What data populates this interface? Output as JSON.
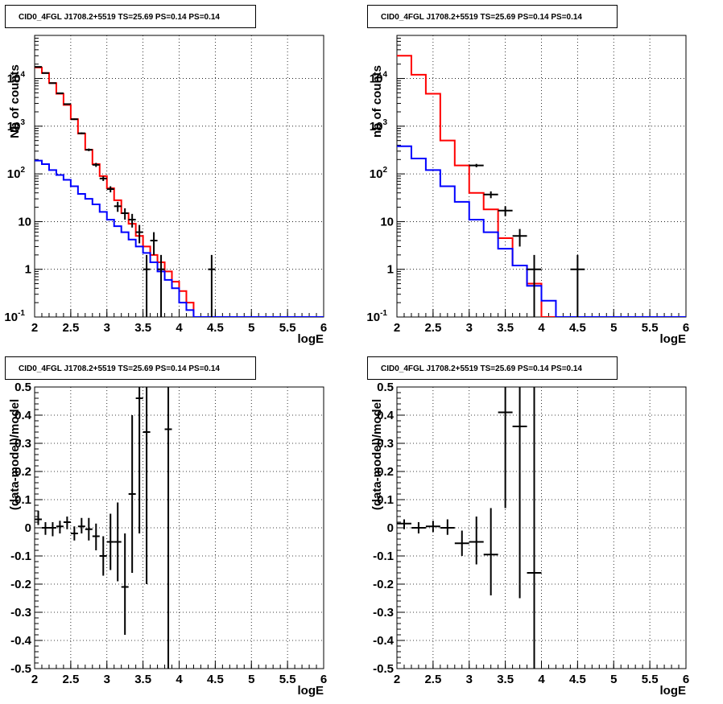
{
  "colors": {
    "data": "#000000",
    "total_model": "#ff0000",
    "component_model": "#0000ff",
    "background": "#ffffff"
  },
  "chart_data": [
    {
      "type": "line",
      "panel": "top-left",
      "title": "CID0_4FGL J1708.2+5519 TS=25.69 PS=0.14 PS=0.14",
      "xlabel": "logE",
      "ylabel": "Nb of counts",
      "xlim": [
        2,
        6
      ],
      "ylim": [
        0.1,
        80000
      ],
      "yscale": "log",
      "grid": true,
      "x_ticks": [
        "2",
        "2.5",
        "3",
        "3.5",
        "4",
        "4.5",
        "5",
        "5.5",
        "6"
      ],
      "y_ticks": [
        "10^-1",
        "1",
        "10",
        "10^2",
        "10^3",
        "10^4"
      ],
      "bin_edges": [
        2.0,
        2.1,
        2.2,
        2.3,
        2.4,
        2.5,
        2.6,
        2.7,
        2.8,
        2.9,
        3.0,
        3.1,
        3.2,
        3.3,
        3.4,
        3.5,
        3.6,
        3.7,
        3.8,
        3.9,
        4.0,
        4.1,
        4.2,
        4.3,
        4.4,
        4.5,
        4.6,
        4.7,
        4.8,
        4.9,
        5.0,
        5.1,
        5.2,
        5.3,
        5.4,
        5.5,
        5.6,
        5.7,
        5.8,
        5.9,
        6.0
      ],
      "series": [
        {
          "role": "total_model",
          "style": "step",
          "values": [
            17000,
            13000,
            8000,
            4800,
            2800,
            1400,
            700,
            320,
            160,
            90,
            50,
            28,
            15,
            9,
            5,
            3,
            2,
            1.4,
            0.9,
            0.55,
            0.35,
            0.2,
            0.1,
            0.1,
            0.1,
            0.1,
            0.1,
            0.1,
            0.1,
            0.1,
            0.1,
            0.1,
            0.1,
            0.1,
            0.1,
            0.1,
            0.1,
            0.1,
            0.1,
            0.1
          ]
        },
        {
          "role": "component_model",
          "style": "step",
          "values": [
            190,
            160,
            120,
            95,
            75,
            55,
            38,
            30,
            23,
            16,
            11,
            8,
            6,
            4.2,
            3,
            2.2,
            1.4,
            0.9,
            0.6,
            0.4,
            0.2,
            0.14,
            0.1,
            0.1,
            0.1,
            0.1,
            0.1,
            0.1,
            0.1,
            0.1,
            0.1,
            0.1,
            0.1,
            0.1,
            0.1,
            0.1,
            0.1,
            0.1,
            0.1,
            0.1
          ]
        },
        {
          "role": "data",
          "style": "errorbar",
          "points": [
            {
              "x": 2.05,
              "y": 17500,
              "lo": 17300,
              "hi": 17700
            },
            {
              "x": 2.15,
              "y": 13000,
              "lo": 12850,
              "hi": 13150
            },
            {
              "x": 2.25,
              "y": 8000,
              "lo": 7870,
              "hi": 8130
            },
            {
              "x": 2.35,
              "y": 4900,
              "lo": 4800,
              "hi": 5000
            },
            {
              "x": 2.45,
              "y": 2900,
              "lo": 2820,
              "hi": 2980
            },
            {
              "x": 2.55,
              "y": 1400,
              "lo": 1350,
              "hi": 1450
            },
            {
              "x": 2.65,
              "y": 710,
              "lo": 680,
              "hi": 740
            },
            {
              "x": 2.75,
              "y": 320,
              "lo": 300,
              "hi": 340
            },
            {
              "x": 2.85,
              "y": 155,
              "lo": 140,
              "hi": 170
            },
            {
              "x": 2.95,
              "y": 80,
              "lo": 71,
              "hi": 89
            },
            {
              "x": 3.05,
              "y": 48,
              "lo": 41,
              "hi": 55
            },
            {
              "x": 3.15,
              "y": 21,
              "lo": 16,
              "hi": 26
            },
            {
              "x": 3.25,
              "y": 15,
              "lo": 11,
              "hi": 19
            },
            {
              "x": 3.35,
              "y": 11,
              "lo": 7.5,
              "hi": 14.5
            },
            {
              "x": 3.45,
              "y": 6,
              "lo": 3.5,
              "hi": 8.5
            },
            {
              "x": 3.55,
              "y": 1,
              "lo": 0.1,
              "hi": 2
            },
            {
              "x": 3.65,
              "y": 4,
              "lo": 2,
              "hi": 6
            },
            {
              "x": 3.75,
              "y": 1,
              "lo": 0.1,
              "hi": 2
            },
            {
              "x": 4.45,
              "y": 1,
              "lo": 0.1,
              "hi": 2
            }
          ]
        }
      ]
    },
    {
      "type": "line",
      "panel": "top-right",
      "title": "CID0_4FGL J1708.2+5519 TS=25.69 PS=0.14 PS=0.14",
      "xlabel": "logE",
      "ylabel": "nb of counts",
      "xlim": [
        2,
        6
      ],
      "ylim": [
        0.1,
        80000
      ],
      "yscale": "log",
      "grid": true,
      "x_ticks": [
        "2",
        "2.5",
        "3",
        "3.5",
        "4",
        "4.5",
        "5",
        "5.5",
        "6"
      ],
      "y_ticks": [
        "10^-1",
        "1",
        "10",
        "10^2",
        "10^3",
        "10^4"
      ],
      "bin_edges": [
        2.0,
        2.2,
        2.4,
        2.6,
        2.8,
        3.0,
        3.2,
        3.4,
        3.6,
        3.8,
        4.0,
        4.2,
        4.4,
        4.6,
        4.8,
        5.0,
        5.2,
        5.4,
        5.6,
        5.8,
        6.0
      ],
      "series": [
        {
          "role": "total_model",
          "style": "step",
          "values": [
            30000,
            12000,
            4800,
            500,
            150,
            40,
            18,
            4.5,
            1.2,
            0.5,
            0.1,
            0.1,
            0.1,
            0.1,
            0.1,
            0.1,
            0.1,
            0.1,
            0.1,
            0.1
          ]
        },
        {
          "role": "component_model",
          "style": "step",
          "values": [
            380,
            210,
            120,
            55,
            26,
            11,
            6,
            2.7,
            1.2,
            0.45,
            0.22,
            0.1,
            0.1,
            0.1,
            0.1,
            0.1,
            0.1,
            0.1,
            0.1,
            0.1
          ]
        },
        {
          "role": "data",
          "style": "errorbar",
          "points": [
            {
              "x": 3.1,
              "y": 150,
              "lo": 138,
              "hi": 162
            },
            {
              "x": 3.3,
              "y": 37,
              "lo": 31,
              "hi": 43
            },
            {
              "x": 3.5,
              "y": 17,
              "lo": 13,
              "hi": 21
            },
            {
              "x": 3.7,
              "y": 5,
              "lo": 3,
              "hi": 7
            },
            {
              "x": 3.9,
              "y": 1,
              "lo": 0.1,
              "hi": 2
            },
            {
              "x": 4.5,
              "y": 1,
              "lo": 0.1,
              "hi": 2
            }
          ]
        }
      ]
    },
    {
      "type": "scatter",
      "panel": "bottom-left",
      "title": "CID0_4FGL J1708.2+5519 TS=25.69 PS=0.14 PS=0.14",
      "xlabel": "logE",
      "ylabel": "(data-model)/model",
      "xlim": [
        2,
        6
      ],
      "ylim": [
        -0.5,
        0.5
      ],
      "grid": true,
      "x_ticks": [
        "2",
        "2.5",
        "3",
        "3.5",
        "4",
        "4.5",
        "5",
        "5.5",
        "6"
      ],
      "y_ticks": [
        "-0.5",
        "-0.4",
        "-0.3",
        "-0.2",
        "-0.1",
        "0",
        "0.1",
        "0.2",
        "0.3",
        "0.4",
        "0.5"
      ],
      "series": [
        {
          "role": "data",
          "style": "errorbar",
          "xerr": 0.05,
          "points": [
            {
              "x": 2.05,
              "y": 0.03,
              "lo": 0.01,
              "hi": 0.06
            },
            {
              "x": 2.15,
              "y": 0.0,
              "lo": -0.025,
              "hi": 0.02
            },
            {
              "x": 2.25,
              "y": 0.0,
              "lo": -0.03,
              "hi": 0.02
            },
            {
              "x": 2.35,
              "y": 0.005,
              "lo": -0.02,
              "hi": 0.025
            },
            {
              "x": 2.45,
              "y": 0.02,
              "lo": -0.005,
              "hi": 0.04
            },
            {
              "x": 2.55,
              "y": -0.02,
              "lo": -0.045,
              "hi": 0.005
            },
            {
              "x": 2.65,
              "y": 0.005,
              "lo": -0.02,
              "hi": 0.035
            },
            {
              "x": 2.75,
              "y": -0.005,
              "lo": -0.045,
              "hi": 0.035
            },
            {
              "x": 2.85,
              "y": -0.03,
              "lo": -0.08,
              "hi": 0.015
            },
            {
              "x": 2.95,
              "y": -0.1,
              "lo": -0.17,
              "hi": -0.03
            },
            {
              "x": 3.05,
              "y": -0.05,
              "lo": -0.15,
              "hi": 0.05
            },
            {
              "x": 3.15,
              "y": -0.05,
              "lo": -0.19,
              "hi": 0.09
            },
            {
              "x": 3.25,
              "y": -0.21,
              "lo": -0.38,
              "hi": -0.02
            },
            {
              "x": 3.35,
              "y": 0.12,
              "lo": -0.16,
              "hi": 0.4
            },
            {
              "x": 3.45,
              "y": 0.46,
              "lo": -0.02,
              "hi": 0.5
            },
            {
              "x": 3.55,
              "y": 0.34,
              "lo": -0.2,
              "hi": 0.5
            },
            {
              "x": 3.85,
              "y": 0.35,
              "lo": -0.5,
              "hi": 0.5
            }
          ]
        }
      ]
    },
    {
      "type": "scatter",
      "panel": "bottom-right",
      "title": "CID0_4FGL J1708.2+5519 TS=25.69 PS=0.14 PS=0.14",
      "xlabel": "logE",
      "ylabel": "(data-model)/model",
      "xlim": [
        2,
        6
      ],
      "ylim": [
        -0.5,
        0.5
      ],
      "grid": true,
      "x_ticks": [
        "2",
        "2.5",
        "3",
        "3.5",
        "4",
        "4.5",
        "5",
        "5.5",
        "6"
      ],
      "y_ticks": [
        "-0.5",
        "-0.4",
        "-0.3",
        "-0.2",
        "-0.1",
        "0",
        "0.1",
        "0.2",
        "0.3",
        "0.4",
        "0.5"
      ],
      "series": [
        {
          "role": "data",
          "style": "errorbar",
          "xerr": 0.1,
          "points": [
            {
              "x": 2.1,
              "y": 0.015,
              "lo": -0.005,
              "hi": 0.03
            },
            {
              "x": 2.3,
              "y": 0.0,
              "lo": -0.02,
              "hi": 0.02
            },
            {
              "x": 2.5,
              "y": 0.005,
              "lo": -0.015,
              "hi": 0.025
            },
            {
              "x": 2.7,
              "y": 0.0,
              "lo": -0.025,
              "hi": 0.03
            },
            {
              "x": 2.9,
              "y": -0.055,
              "lo": -0.1,
              "hi": -0.01
            },
            {
              "x": 3.1,
              "y": -0.05,
              "lo": -0.13,
              "hi": 0.04
            },
            {
              "x": 3.3,
              "y": -0.095,
              "lo": -0.24,
              "hi": 0.07
            },
            {
              "x": 3.5,
              "y": 0.41,
              "lo": 0.07,
              "hi": 0.5
            },
            {
              "x": 3.7,
              "y": 0.36,
              "lo": -0.25,
              "hi": 0.5
            },
            {
              "x": 3.9,
              "y": -0.16,
              "lo": -0.5,
              "hi": 0.5
            }
          ]
        }
      ]
    }
  ]
}
